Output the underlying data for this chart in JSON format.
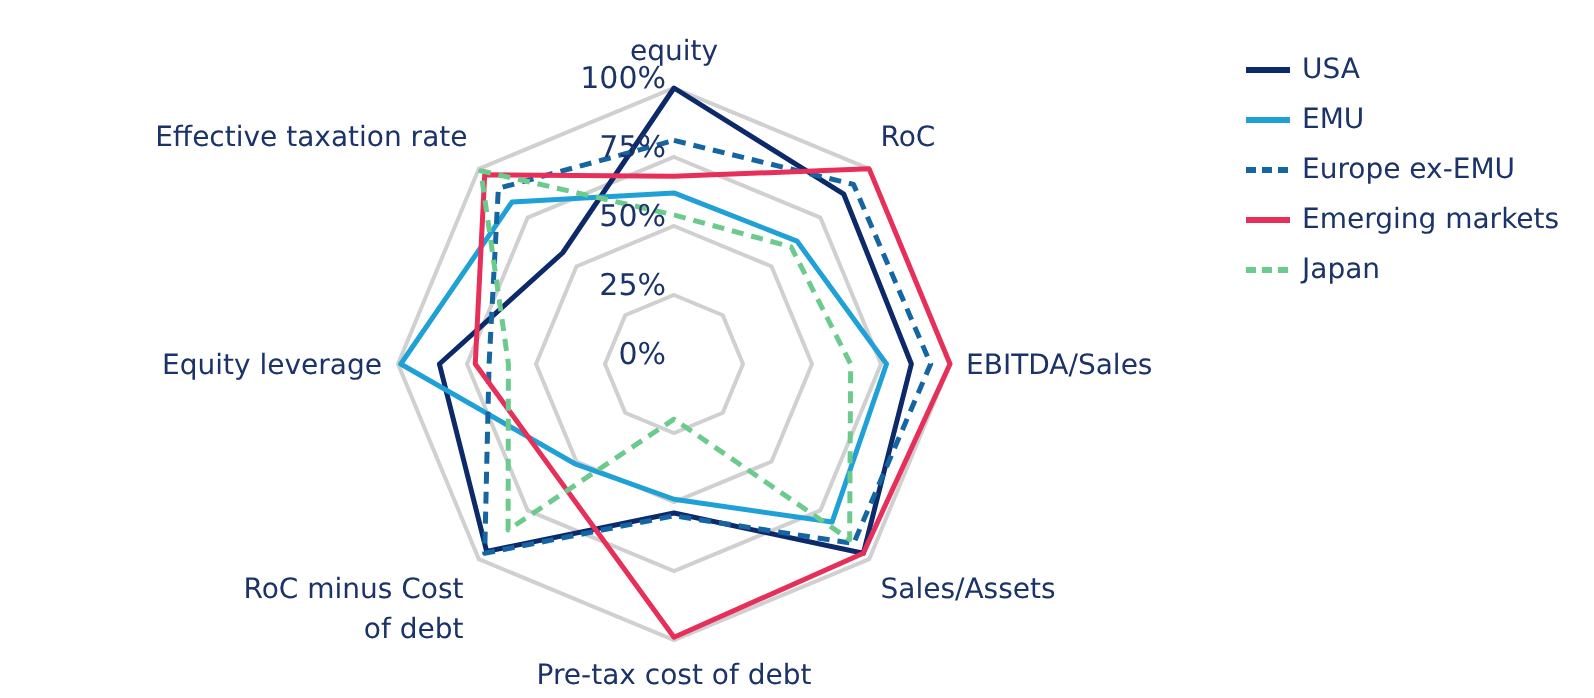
{
  "chart_data": {
    "type": "radar",
    "categories": [
      "equity",
      "RoC",
      "EBITDA/Sales",
      "Sales/Assets",
      "Pre-tax cost of debt",
      "RoC minus Cost of debt",
      "Equity leverage",
      "Effective taxation rate"
    ],
    "series": [
      {
        "name": "USA",
        "color": "#0c2a6a",
        "line_style": "solid",
        "values": [
          100,
          87,
          86,
          97,
          54,
          96,
          85,
          57
        ]
      },
      {
        "name": "EMU",
        "color": "#1fa0d6",
        "line_style": "solid",
        "values": [
          62,
          63,
          77,
          81,
          49,
          51,
          99,
          83
        ]
      },
      {
        "name": "Europe ex-EMU",
        "color": "#1565a3",
        "line_style": "dashed",
        "values": [
          81,
          92,
          93,
          92,
          55,
          97,
          67,
          90
        ]
      },
      {
        "name": "Emerging markets",
        "color": "#e6305a",
        "line_style": "solid",
        "values": [
          68,
          100,
          100,
          97,
          99,
          59,
          72,
          97
        ]
      },
      {
        "name": "Japan",
        "color": "#6ccb8c",
        "line_style": "dashed",
        "values": [
          54,
          60,
          64,
          90,
          20,
          85,
          60,
          99
        ]
      }
    ],
    "ylim": [
      0,
      100
    ],
    "yticks": [
      {
        "value": 0,
        "label": "0%"
      },
      {
        "value": 25,
        "label": "25%"
      },
      {
        "value": 50,
        "label": "50%"
      },
      {
        "value": 75,
        "label": "75%"
      },
      {
        "value": 100,
        "label": "100%"
      }
    ],
    "grid": true,
    "legend": "top right"
  }
}
